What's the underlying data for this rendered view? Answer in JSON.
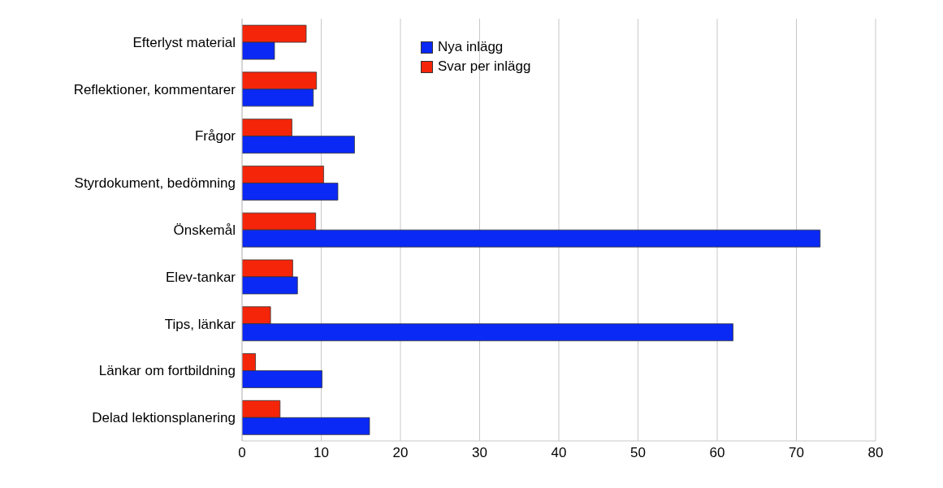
{
  "chart_data": {
    "type": "bar",
    "orientation": "horizontal",
    "categories": [
      "Efterlyst material",
      "Reflektioner, kommentarer",
      "Frågor ",
      "Styrdokument, bedömning",
      "Önskemål ",
      "Elev-tankar",
      "Tips, länkar",
      "Länkar om fortbildning",
      "Delad lektionsplanering"
    ],
    "series": [
      {
        "name": "Nya inlägg",
        "color": "#0a29f5",
        "values": [
          4.1,
          9.0,
          14.2,
          12.1,
          73.0,
          7.0,
          62.0,
          10.1,
          16.1
        ]
      },
      {
        "name": "Svar per inlägg",
        "color": "#f5250a",
        "values": [
          8.1,
          9.4,
          6.3,
          10.3,
          9.3,
          6.4,
          3.6,
          1.7,
          4.8
        ]
      }
    ],
    "xlim": [
      0,
      80
    ],
    "xticks": [
      0,
      10,
      20,
      30,
      40,
      50,
      60,
      70,
      80
    ],
    "grid": "x",
    "legend": "top"
  }
}
